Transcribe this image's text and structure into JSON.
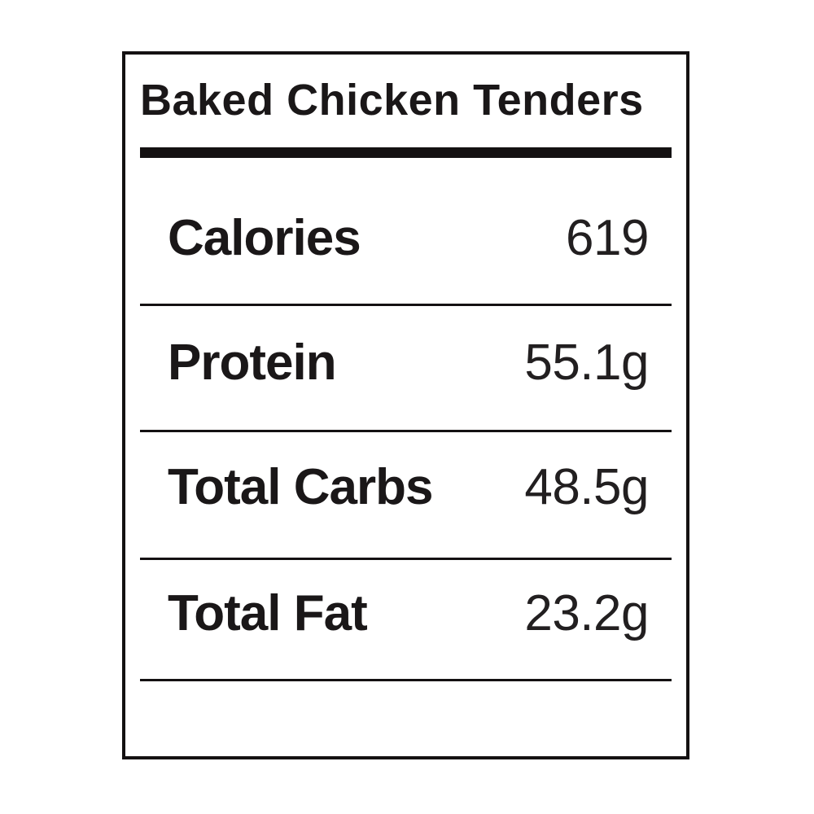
{
  "label": {
    "title": "Baked Chicken Tenders",
    "rows": [
      {
        "name": "Calories",
        "value": "619"
      },
      {
        "name": "Protein",
        "value": "55.1g"
      },
      {
        "name": "Total Carbs",
        "value": "48.5g"
      },
      {
        "name": "Total Fat",
        "value": "23.2g"
      }
    ],
    "colors": {
      "ink": "#141112",
      "background": "#ffffff"
    }
  }
}
